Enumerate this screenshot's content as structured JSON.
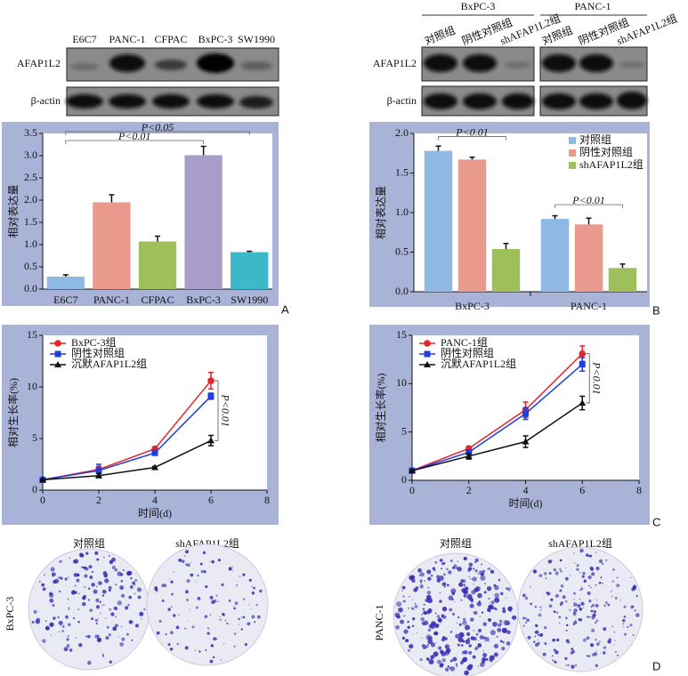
{
  "panel_labels": [
    "A",
    "B",
    "C",
    "D"
  ],
  "blot_a": {
    "lanes": [
      "E6C7",
      "PANC-1",
      "CFPAC",
      "BxPC-3",
      "SW1990"
    ],
    "rows": [
      "AFAP1L2",
      "β-actin"
    ]
  },
  "blot_b": {
    "groups": [
      "BxPC-3",
      "PANC-1"
    ],
    "lanes": [
      "对照组",
      "阴性对照组",
      "shAFAP1L2组",
      "对照组",
      "阴性对照组",
      "shAFAP1L2组"
    ],
    "rows": [
      "AFAP1L2",
      "β-actin"
    ]
  },
  "chart_data": [
    {
      "type": "bar",
      "ylabel": "相对表达量",
      "categories": [
        "E6C7",
        "PANC-1",
        "CFPAC",
        "BxPC-3",
        "SW1990"
      ],
      "values": [
        0.28,
        1.95,
        1.07,
        3.01,
        0.83
      ],
      "errors": [
        0.04,
        0.17,
        0.12,
        0.2,
        0.02
      ],
      "colors": [
        "#8fb9e3",
        "#e99a8c",
        "#9fbe5c",
        "#a89dc9",
        "#3cb9c9"
      ],
      "ylim": [
        0,
        3.5
      ],
      "yticks": [
        {
          "value": 0,
          "label": "0.0"
        },
        0.5,
        {
          "value": 1,
          "label": "1.0"
        },
        1.5,
        {
          "value": 2,
          "label": "2.0"
        },
        2.5,
        {
          "value": 3,
          "label": "3.0"
        },
        3.5
      ],
      "annotations": [
        "P<0.05",
        "P<0.01"
      ]
    },
    {
      "type": "bar",
      "ylabel": "相对表达量",
      "categories": [
        "BxPC-3",
        "PANC-1"
      ],
      "series": [
        {
          "name": "对照组",
          "color": "#8fb9e3",
          "values": [
            1.78,
            0.92
          ],
          "errors": [
            0.06,
            0.04
          ]
        },
        {
          "name": "阴性对照组",
          "color": "#e99a8c",
          "values": [
            1.67,
            0.85
          ],
          "errors": [
            0.03,
            0.08
          ]
        },
        {
          "name": "shAFAP1L2组",
          "color": "#9fbe5c",
          "values": [
            0.54,
            0.3
          ],
          "errors": [
            0.07,
            0.05
          ]
        }
      ],
      "ylim": [
        0,
        2
      ],
      "yticks": [
        {
          "value": 0,
          "label": "0.0"
        },
        0.5,
        {
          "value": 1,
          "label": "1.0"
        },
        1.5,
        {
          "value": 2,
          "label": "2.0"
        }
      ],
      "legend": "upper right",
      "annotations": [
        "P<0.01",
        "P<0.01"
      ]
    },
    {
      "type": "line",
      "xlabel": "时间(d)",
      "ylabel": "相对生长率(%)",
      "x": [
        0,
        2,
        4,
        6
      ],
      "series": [
        {
          "name": "BxPC-3组",
          "color": "#e8232a",
          "marker": "circle",
          "values": [
            1,
            2.0,
            4.0,
            10.6
          ],
          "errors": [
            0.05,
            0.3,
            0.15,
            0.8
          ]
        },
        {
          "name": "阴性对照组",
          "color": "#1f3ee0",
          "marker": "square",
          "values": [
            1,
            1.9,
            3.6,
            9.1
          ],
          "errors": [
            0.05,
            0.6,
            0.15,
            0.3
          ]
        },
        {
          "name": "沉默AFAP1L2组",
          "color": "#111111",
          "marker": "triangle",
          "values": [
            1,
            1.4,
            2.2,
            4.8
          ],
          "errors": [
            0.05,
            0.2,
            0.1,
            0.5
          ]
        }
      ],
      "xlim": [
        0,
        8
      ],
      "xticks": [
        0,
        2,
        4,
        6,
        8
      ],
      "ylim": [
        0,
        15
      ],
      "yticks": [
        0,
        5,
        10,
        15
      ],
      "legend": "upper left",
      "annotations": [
        "P<0.01"
      ]
    },
    {
      "type": "line",
      "xlabel": "时间(d)",
      "ylabel": "相对生长率(%)",
      "x": [
        0,
        2,
        4,
        6
      ],
      "series": [
        {
          "name": "PANC-1组",
          "color": "#e8232a",
          "marker": "circle",
          "values": [
            1,
            3.3,
            7.3,
            13.1
          ],
          "errors": [
            0.05,
            0.2,
            0.8,
            0.8
          ]
        },
        {
          "name": "阴性对照组",
          "color": "#1f3ee0",
          "marker": "square",
          "values": [
            1,
            2.9,
            6.9,
            12.0
          ],
          "errors": [
            0.05,
            0.2,
            0.6,
            0.7
          ]
        },
        {
          "name": "沉默AFAP1L2组",
          "color": "#111111",
          "marker": "triangle",
          "values": [
            1,
            2.5,
            4.0,
            8.0
          ],
          "errors": [
            0.05,
            0.3,
            0.6,
            0.7
          ]
        }
      ],
      "xlim": [
        0,
        8
      ],
      "xticks": [
        0,
        2,
        4,
        6,
        8
      ],
      "ylim": [
        0,
        15
      ],
      "yticks": [
        0,
        5,
        10,
        15
      ],
      "legend": "upper left",
      "annotations": [
        "P<0.01"
      ]
    }
  ],
  "colonies": {
    "left": {
      "row": "BxPC-3",
      "columns": [
        "对照组",
        "shAFAP1L2组"
      ]
    },
    "right": {
      "row": "PANC-1",
      "columns": [
        "对照组",
        "shAFAP1L2组"
      ]
    }
  }
}
